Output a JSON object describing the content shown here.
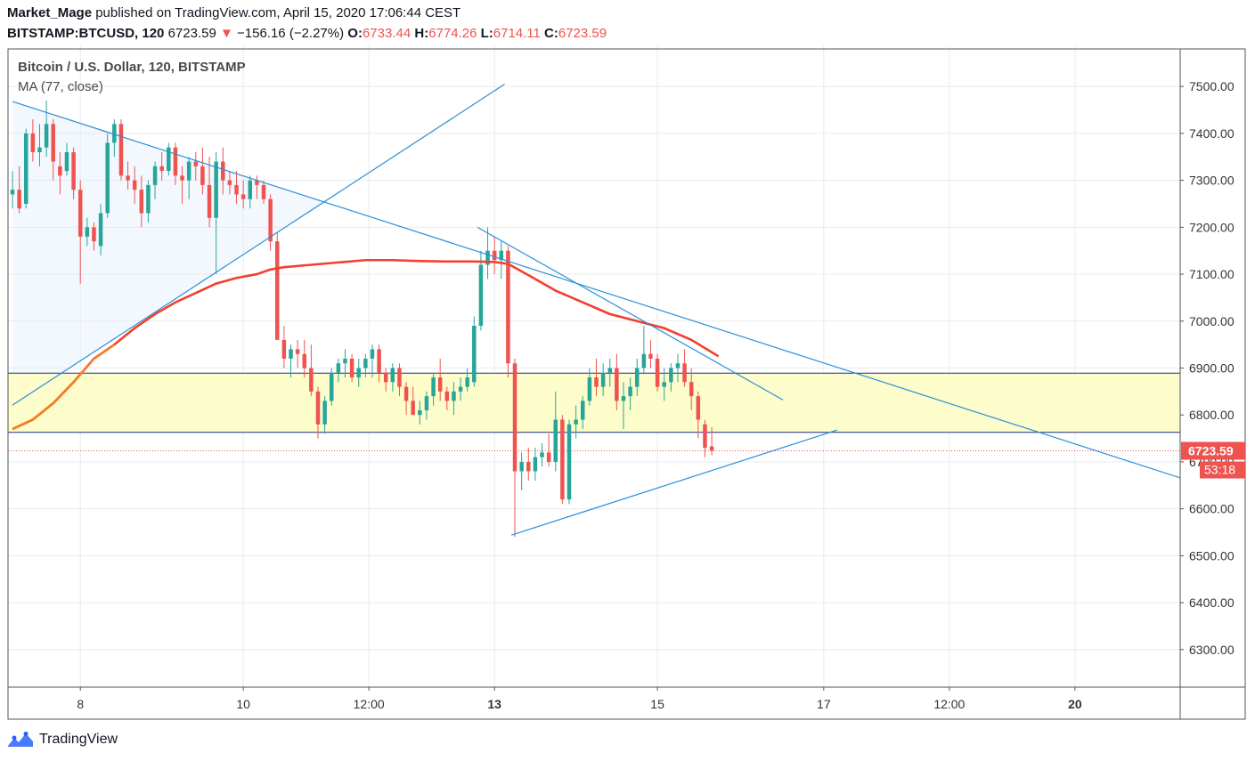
{
  "header": {
    "author": "Market_Mage",
    "published_text": "published on TradingView.com, April 15, 2020 17:06:44 CEST",
    "symbol": "BITSTAMP:BTCUSD, 120",
    "last_price": "6723.59",
    "change_arrow": "▼",
    "change": "−156.16 (−2.27%)",
    "open_label": "O:",
    "open": "6733.44",
    "high_label": "H:",
    "high": "6774.26",
    "low_label": "L:",
    "low": "6714.11",
    "close_label": "C:",
    "close": "6723.59"
  },
  "legend": {
    "series_title": "Bitcoin / U.S. Dollar, 120, BITSTAMP",
    "indicator": "MA (77, close)"
  },
  "footer": {
    "brand": "TradingView"
  },
  "colors": {
    "up": "#26a69a",
    "down": "#ef5350",
    "ma": "#f23f2e",
    "trendline": "#2a8fd8",
    "zone_fill": "#fdfccb",
    "zone_border": "#1b2c7e",
    "grid": "#e8ebef",
    "axis_text": "#333333",
    "shaded": "#f3f8fe"
  },
  "chart_data": {
    "type": "candlestick",
    "title": "Bitcoin / U.S. Dollar, 120, BITSTAMP",
    "ylim": [
      6220,
      7580
    ],
    "x_range": [
      0,
      172
    ],
    "y_ticks": [
      "7500.00",
      "7400.00",
      "7300.00",
      "7200.00",
      "7100.00",
      "7000.00",
      "6900.00",
      "6800.00",
      "6700.00",
      "6600.00",
      "6500.00",
      "6400.00",
      "6300.00"
    ],
    "y_tick_values": [
      7500,
      7400,
      7300,
      7200,
      7100,
      7000,
      6900,
      6800,
      6700,
      6600,
      6500,
      6400,
      6300
    ],
    "x_ticks": [
      {
        "label": "8",
        "x": 10,
        "bold": false
      },
      {
        "label": "10",
        "x": 34,
        "bold": false
      },
      {
        "label": "12:00",
        "x": 52.5,
        "bold": false
      },
      {
        "label": "13",
        "x": 71,
        "bold": true
      },
      {
        "label": "15",
        "x": 95,
        "bold": false
      },
      {
        "label": "17",
        "x": 119.5,
        "bold": false
      },
      {
        "label": "12:00",
        "x": 138,
        "bold": false
      },
      {
        "label": "20",
        "x": 156.5,
        "bold": true
      }
    ],
    "last_price": 6723.59,
    "last_price_label": "6723.59",
    "countdown_label": "53:18",
    "zone": {
      "top": 6889,
      "bottom": 6763
    },
    "candles": [
      {
        "x": 0,
        "o": 7270,
        "h": 7320,
        "l": 7240,
        "c": 7280
      },
      {
        "x": 1,
        "o": 7280,
        "h": 7330,
        "l": 7230,
        "c": 7240
      },
      {
        "x": 2,
        "o": 7250,
        "h": 7410,
        "l": 7240,
        "c": 7400
      },
      {
        "x": 3,
        "o": 7400,
        "h": 7430,
        "l": 7340,
        "c": 7360
      },
      {
        "x": 4,
        "o": 7360,
        "h": 7420,
        "l": 7330,
        "c": 7370
      },
      {
        "x": 5,
        "o": 7370,
        "h": 7470,
        "l": 7350,
        "c": 7420
      },
      {
        "x": 6,
        "o": 7420,
        "h": 7430,
        "l": 7300,
        "c": 7340
      },
      {
        "x": 7,
        "o": 7330,
        "h": 7360,
        "l": 7270,
        "c": 7310
      },
      {
        "x": 8,
        "o": 7320,
        "h": 7380,
        "l": 7310,
        "c": 7360
      },
      {
        "x": 9,
        "o": 7360,
        "h": 7370,
        "l": 7260,
        "c": 7280
      },
      {
        "x": 10,
        "o": 7280,
        "h": 7300,
        "l": 7080,
        "c": 7180
      },
      {
        "x": 11,
        "o": 7180,
        "h": 7220,
        "l": 7160,
        "c": 7200
      },
      {
        "x": 12,
        "o": 7200,
        "h": 7210,
        "l": 7150,
        "c": 7170
      },
      {
        "x": 13,
        "o": 7160,
        "h": 7250,
        "l": 7140,
        "c": 7230
      },
      {
        "x": 14,
        "o": 7230,
        "h": 7400,
        "l": 7220,
        "c": 7380
      },
      {
        "x": 15,
        "o": 7380,
        "h": 7430,
        "l": 7350,
        "c": 7420
      },
      {
        "x": 16,
        "o": 7420,
        "h": 7430,
        "l": 7300,
        "c": 7310
      },
      {
        "x": 17,
        "o": 7310,
        "h": 7340,
        "l": 7280,
        "c": 7300
      },
      {
        "x": 18,
        "o": 7300,
        "h": 7330,
        "l": 7250,
        "c": 7280
      },
      {
        "x": 19,
        "o": 7280,
        "h": 7310,
        "l": 7200,
        "c": 7230
      },
      {
        "x": 20,
        "o": 7230,
        "h": 7300,
        "l": 7210,
        "c": 7290
      },
      {
        "x": 21,
        "o": 7290,
        "h": 7340,
        "l": 7260,
        "c": 7330
      },
      {
        "x": 22,
        "o": 7330,
        "h": 7360,
        "l": 7300,
        "c": 7320
      },
      {
        "x": 23,
        "o": 7320,
        "h": 7380,
        "l": 7310,
        "c": 7370
      },
      {
        "x": 24,
        "o": 7370,
        "h": 7380,
        "l": 7290,
        "c": 7310
      },
      {
        "x": 25,
        "o": 7310,
        "h": 7330,
        "l": 7250,
        "c": 7300
      },
      {
        "x": 26,
        "o": 7300,
        "h": 7350,
        "l": 7260,
        "c": 7340
      },
      {
        "x": 27,
        "o": 7340,
        "h": 7360,
        "l": 7300,
        "c": 7330
      },
      {
        "x": 28,
        "o": 7330,
        "h": 7370,
        "l": 7270,
        "c": 7290
      },
      {
        "x": 29,
        "o": 7290,
        "h": 7350,
        "l": 7200,
        "c": 7220
      },
      {
        "x": 30,
        "o": 7220,
        "h": 7360,
        "l": 7100,
        "c": 7340
      },
      {
        "x": 31,
        "o": 7340,
        "h": 7370,
        "l": 7270,
        "c": 7300
      },
      {
        "x": 32,
        "o": 7300,
        "h": 7320,
        "l": 7270,
        "c": 7290
      },
      {
        "x": 33,
        "o": 7290,
        "h": 7320,
        "l": 7250,
        "c": 7270
      },
      {
        "x": 34,
        "o": 7270,
        "h": 7300,
        "l": 7240,
        "c": 7260
      },
      {
        "x": 35,
        "o": 7260,
        "h": 7310,
        "l": 7240,
        "c": 7300
      },
      {
        "x": 36,
        "o": 7300,
        "h": 7310,
        "l": 7260,
        "c": 7290
      },
      {
        "x": 37,
        "o": 7290,
        "h": 7300,
        "l": 7250,
        "c": 7260
      },
      {
        "x": 38,
        "o": 7260,
        "h": 7270,
        "l": 7150,
        "c": 7170
      },
      {
        "x": 39,
        "o": 7170,
        "h": 7190,
        "l": 6960,
        "c": 6960
      },
      {
        "x": 40,
        "o": 6960,
        "h": 6990,
        "l": 6900,
        "c": 6920
      },
      {
        "x": 41,
        "o": 6920,
        "h": 6950,
        "l": 6880,
        "c": 6940
      },
      {
        "x": 42,
        "o": 6940,
        "h": 6960,
        "l": 6900,
        "c": 6930
      },
      {
        "x": 43,
        "o": 6930,
        "h": 6960,
        "l": 6880,
        "c": 6900
      },
      {
        "x": 44,
        "o": 6900,
        "h": 6950,
        "l": 6840,
        "c": 6850
      },
      {
        "x": 45,
        "o": 6850,
        "h": 6860,
        "l": 6750,
        "c": 6780
      },
      {
        "x": 46,
        "o": 6780,
        "h": 6840,
        "l": 6760,
        "c": 6830
      },
      {
        "x": 47,
        "o": 6830,
        "h": 6900,
        "l": 6820,
        "c": 6890
      },
      {
        "x": 48,
        "o": 6890,
        "h": 6920,
        "l": 6870,
        "c": 6910
      },
      {
        "x": 49,
        "o": 6910,
        "h": 6940,
        "l": 6880,
        "c": 6920
      },
      {
        "x": 50,
        "o": 6920,
        "h": 6930,
        "l": 6870,
        "c": 6880
      },
      {
        "x": 51,
        "o": 6880,
        "h": 6920,
        "l": 6860,
        "c": 6900
      },
      {
        "x": 52,
        "o": 6900,
        "h": 6930,
        "l": 6880,
        "c": 6920
      },
      {
        "x": 53,
        "o": 6920,
        "h": 6950,
        "l": 6880,
        "c": 6940
      },
      {
        "x": 54,
        "o": 6940,
        "h": 6950,
        "l": 6870,
        "c": 6890
      },
      {
        "x": 55,
        "o": 6890,
        "h": 6900,
        "l": 6850,
        "c": 6870
      },
      {
        "x": 56,
        "o": 6870,
        "h": 6910,
        "l": 6850,
        "c": 6900
      },
      {
        "x": 57,
        "o": 6900,
        "h": 6910,
        "l": 6840,
        "c": 6860
      },
      {
        "x": 58,
        "o": 6860,
        "h": 6870,
        "l": 6800,
        "c": 6830
      },
      {
        "x": 59,
        "o": 6830,
        "h": 6860,
        "l": 6800,
        "c": 6800
      },
      {
        "x": 60,
        "o": 6800,
        "h": 6830,
        "l": 6780,
        "c": 6810
      },
      {
        "x": 61,
        "o": 6810,
        "h": 6850,
        "l": 6790,
        "c": 6840
      },
      {
        "x": 62,
        "o": 6840,
        "h": 6890,
        "l": 6820,
        "c": 6880
      },
      {
        "x": 63,
        "o": 6880,
        "h": 6920,
        "l": 6830,
        "c": 6850
      },
      {
        "x": 64,
        "o": 6850,
        "h": 6860,
        "l": 6810,
        "c": 6830
      },
      {
        "x": 65,
        "o": 6830,
        "h": 6870,
        "l": 6800,
        "c": 6850
      },
      {
        "x": 66,
        "o": 6850,
        "h": 6880,
        "l": 6830,
        "c": 6860
      },
      {
        "x": 67,
        "o": 6860,
        "h": 6900,
        "l": 6850,
        "c": 6880
      },
      {
        "x": 68,
        "o": 6870,
        "h": 7010,
        "l": 6860,
        "c": 6990
      },
      {
        "x": 69,
        "o": 6990,
        "h": 7150,
        "l": 6980,
        "c": 7120
      },
      {
        "x": 70,
        "o": 7120,
        "h": 7200,
        "l": 7090,
        "c": 7150
      },
      {
        "x": 71,
        "o": 7150,
        "h": 7180,
        "l": 7100,
        "c": 7130
      },
      {
        "x": 72,
        "o": 7130,
        "h": 7170,
        "l": 7090,
        "c": 7150
      },
      {
        "x": 73,
        "o": 7150,
        "h": 7160,
        "l": 6880,
        "c": 6910
      },
      {
        "x": 74,
        "o": 6910,
        "h": 6920,
        "l": 6540,
        "c": 6680
      },
      {
        "x": 75,
        "o": 6680,
        "h": 6720,
        "l": 6640,
        "c": 6700
      },
      {
        "x": 76,
        "o": 6700,
        "h": 6730,
        "l": 6660,
        "c": 6680
      },
      {
        "x": 77,
        "o": 6680,
        "h": 6730,
        "l": 6660,
        "c": 6710
      },
      {
        "x": 78,
        "o": 6710,
        "h": 6740,
        "l": 6690,
        "c": 6720
      },
      {
        "x": 79,
        "o": 6720,
        "h": 6760,
        "l": 6690,
        "c": 6700
      },
      {
        "x": 80,
        "o": 6700,
        "h": 6850,
        "l": 6680,
        "c": 6790
      },
      {
        "x": 81,
        "o": 6790,
        "h": 6800,
        "l": 6610,
        "c": 6620
      },
      {
        "x": 82,
        "o": 6620,
        "h": 6790,
        "l": 6610,
        "c": 6780
      },
      {
        "x": 83,
        "o": 6780,
        "h": 6820,
        "l": 6750,
        "c": 6790
      },
      {
        "x": 84,
        "o": 6790,
        "h": 6840,
        "l": 6770,
        "c": 6830
      },
      {
        "x": 85,
        "o": 6830,
        "h": 6900,
        "l": 6820,
        "c": 6880
      },
      {
        "x": 86,
        "o": 6880,
        "h": 6920,
        "l": 6840,
        "c": 6860
      },
      {
        "x": 87,
        "o": 6860,
        "h": 6910,
        "l": 6840,
        "c": 6890
      },
      {
        "x": 88,
        "o": 6890,
        "h": 6920,
        "l": 6860,
        "c": 6900
      },
      {
        "x": 89,
        "o": 6900,
        "h": 6930,
        "l": 6810,
        "c": 6830
      },
      {
        "x": 90,
        "o": 6830,
        "h": 6870,
        "l": 6770,
        "c": 6840
      },
      {
        "x": 91,
        "o": 6840,
        "h": 6880,
        "l": 6810,
        "c": 6860
      },
      {
        "x": 92,
        "o": 6860,
        "h": 6920,
        "l": 6840,
        "c": 6900
      },
      {
        "x": 93,
        "o": 6900,
        "h": 6990,
        "l": 6890,
        "c": 6930
      },
      {
        "x": 94,
        "o": 6930,
        "h": 6960,
        "l": 6900,
        "c": 6920
      },
      {
        "x": 95,
        "o": 6920,
        "h": 6930,
        "l": 6850,
        "c": 6860
      },
      {
        "x": 96,
        "o": 6860,
        "h": 6900,
        "l": 6830,
        "c": 6870
      },
      {
        "x": 97,
        "o": 6870,
        "h": 6910,
        "l": 6850,
        "c": 6900
      },
      {
        "x": 98,
        "o": 6900,
        "h": 6930,
        "l": 6870,
        "c": 6910
      },
      {
        "x": 99,
        "o": 6910,
        "h": 6940,
        "l": 6860,
        "c": 6870
      },
      {
        "x": 100,
        "o": 6870,
        "h": 6900,
        "l": 6810,
        "c": 6840
      },
      {
        "x": 101,
        "o": 6840,
        "h": 6850,
        "l": 6750,
        "c": 6790
      },
      {
        "x": 102,
        "o": 6780,
        "h": 6790,
        "l": 6710,
        "c": 6730
      },
      {
        "x": 103,
        "o": 6733,
        "h": 6774,
        "l": 6714,
        "c": 6724
      }
    ],
    "ma": {
      "name": "MA (77, close)",
      "points": [
        [
          0,
          6770
        ],
        [
          3,
          6790
        ],
        [
          6,
          6825
        ],
        [
          9,
          6870
        ],
        [
          12,
          6920
        ],
        [
          15,
          6950
        ],
        [
          18,
          6985
        ],
        [
          21,
          7015
        ],
        [
          24,
          7040
        ],
        [
          27,
          7060
        ],
        [
          30,
          7080
        ],
        [
          33,
          7092
        ],
        [
          36,
          7100
        ],
        [
          38,
          7110
        ],
        [
          40,
          7115
        ],
        [
          44,
          7120
        ],
        [
          48,
          7125
        ],
        [
          52,
          7130
        ],
        [
          56,
          7130
        ],
        [
          60,
          7128
        ],
        [
          64,
          7127
        ],
        [
          68,
          7127
        ],
        [
          71,
          7126
        ],
        [
          73,
          7122
        ],
        [
          76,
          7098
        ],
        [
          80,
          7065
        ],
        [
          84,
          7040
        ],
        [
          88,
          7015
        ],
        [
          92,
          7000
        ],
        [
          96,
          6985
        ],
        [
          100,
          6960
        ],
        [
          104,
          6925
        ]
      ]
    },
    "trendlines": [
      {
        "name": "long-downtrend",
        "x1": 0,
        "y1": 7468,
        "x2": 172,
        "y2": 6666
      },
      {
        "name": "left-uptrend",
        "x1": 0,
        "y1": 6821,
        "x2": 72.5,
        "y2": 7505
      },
      {
        "name": "upper-wedge",
        "x1": 68.5,
        "y1": 7200,
        "x2": 113.5,
        "y2": 6832
      },
      {
        "name": "lower-wedge",
        "x1": 73.5,
        "y1": 6544,
        "x2": 121.5,
        "y2": 6768
      }
    ]
  }
}
